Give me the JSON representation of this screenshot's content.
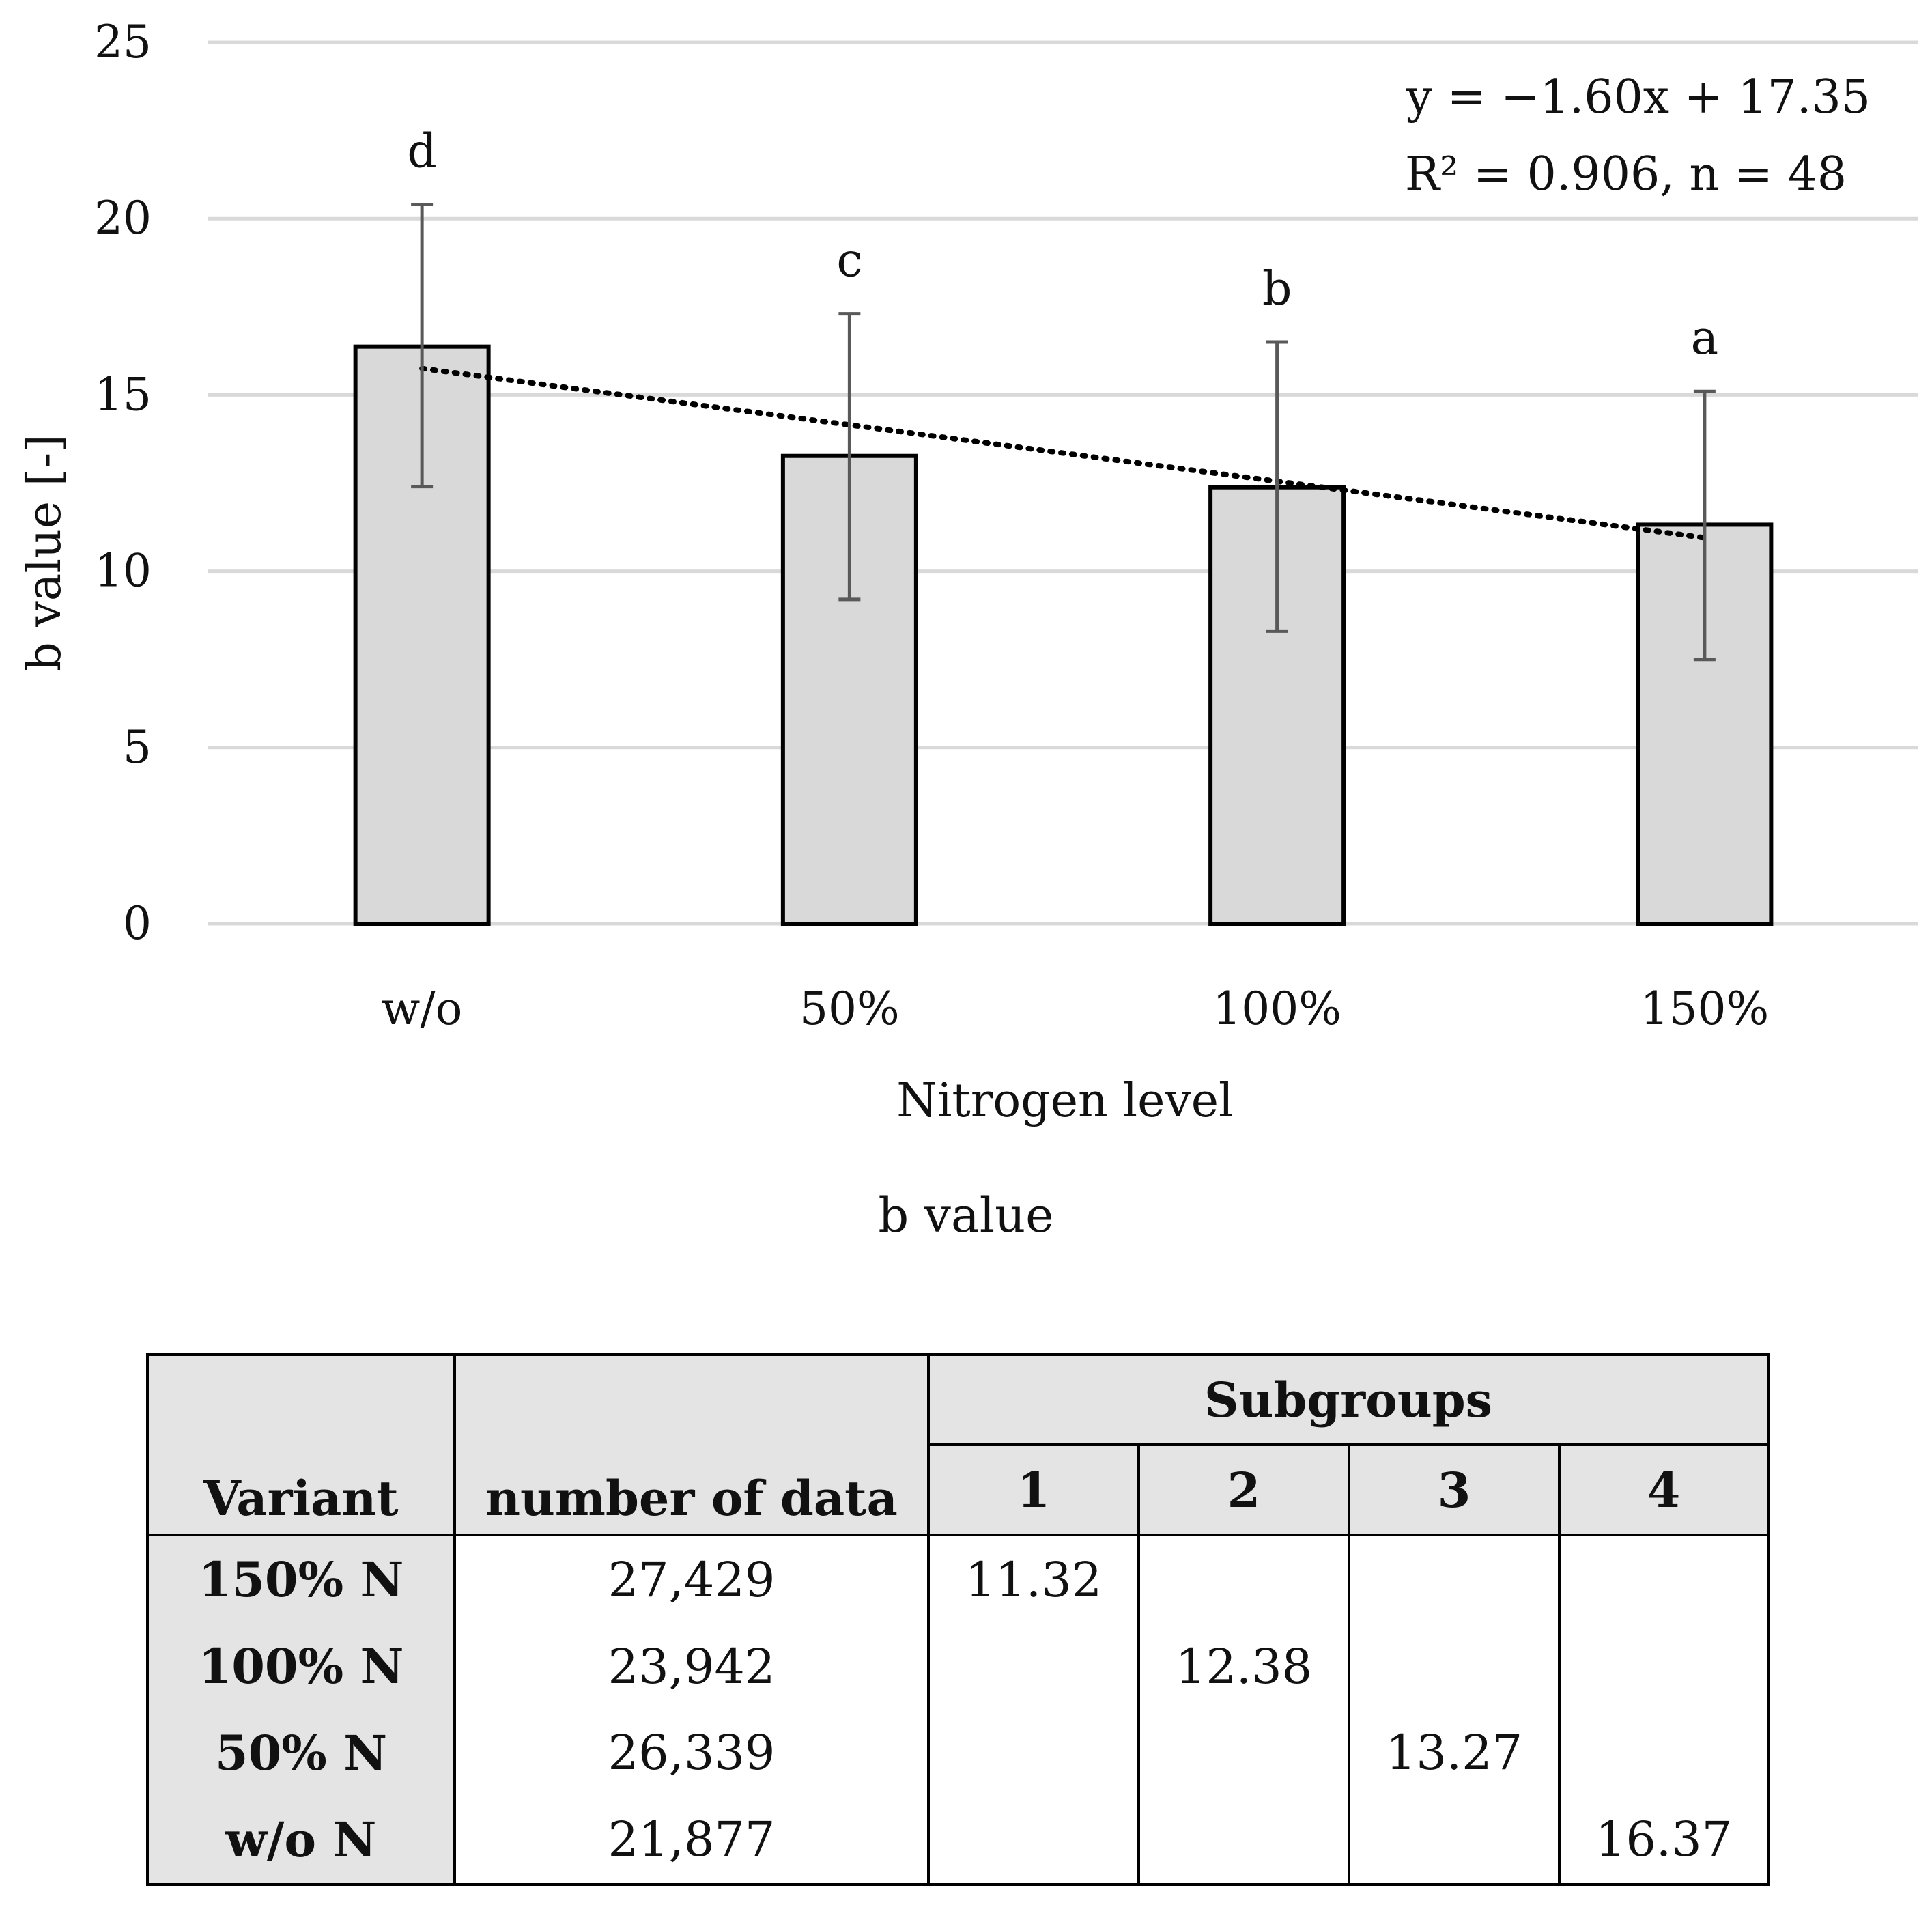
{
  "chart_data": {
    "type": "bar",
    "categories": [
      "w/o",
      "50%",
      "100%",
      "150%"
    ],
    "values": [
      16.37,
      13.27,
      12.38,
      11.32
    ],
    "error_bars": {
      "upper": [
        20.4,
        17.3,
        16.5,
        15.1
      ],
      "lower": [
        12.4,
        9.2,
        8.3,
        7.5
      ]
    },
    "significance_letters": [
      "d",
      "c",
      "b",
      "a"
    ],
    "trendline": {
      "slope": -1.6,
      "intercept": 17.35,
      "style": "dotted"
    },
    "equation_lines": [
      "y = −1.60x + 17.35",
      "R² = 0.906, n = 48"
    ],
    "xlabel": "Nitrogen level",
    "ylabel": "b value [-]",
    "ylim": [
      0,
      25
    ],
    "yticks": [
      0,
      5,
      10,
      15,
      20,
      25
    ],
    "grid": true
  },
  "caption": "b value",
  "table": {
    "headers": {
      "variant": "Variant",
      "count": "number of data",
      "subgroups": "Subgroups",
      "subgroup_numbers": [
        "1",
        "2",
        "3",
        "4"
      ]
    },
    "rows": [
      {
        "variant": "150%  N",
        "count": "27,429",
        "subgroup": 1,
        "mean": "11.32"
      },
      {
        "variant": "100% N",
        "count": "23,942",
        "subgroup": 2,
        "mean": "12.38"
      },
      {
        "variant": "50% N",
        "count": "26,339",
        "subgroup": 3,
        "mean": "13.27"
      },
      {
        "variant": "w/o N",
        "count": "21,877",
        "subgroup": 4,
        "mean": "16.37"
      }
    ]
  },
  "colors": {
    "bar_fill": "#d9d9d9",
    "bar_stroke": "#000000",
    "grid": "#d9d9d9",
    "error_bar": "#595959",
    "header_fill": "#e4e4e4"
  }
}
